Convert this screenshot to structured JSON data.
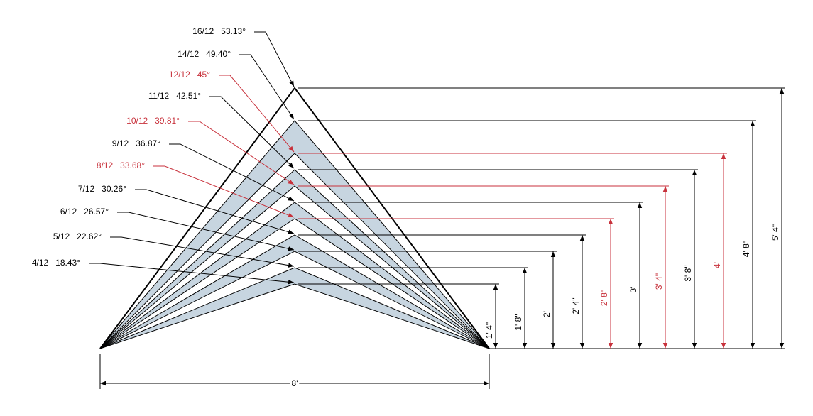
{
  "pitches": [
    {
      "pitch": "16/12",
      "angle": "53.13°",
      "height": "5' 4\"",
      "color": "#000000"
    },
    {
      "pitch": "14/12",
      "angle": "49.40°",
      "height": "4' 8\"",
      "color": "#000000"
    },
    {
      "pitch": "12/12",
      "angle": "45°",
      "height": "4'",
      "color": "#c8323c"
    },
    {
      "pitch": "11/12",
      "angle": "42.51°",
      "height": "3' 8\"",
      "color": "#000000"
    },
    {
      "pitch": "10/12",
      "angle": "39.81°",
      "height": "3' 4\"",
      "color": "#c8323c"
    },
    {
      "pitch": "9/12",
      "angle": "36.87°",
      "height": "3'",
      "color": "#000000"
    },
    {
      "pitch": "8/12",
      "angle": "33.68°",
      "height": "2' 8\"",
      "color": "#c8323c"
    },
    {
      "pitch": "7/12",
      "angle": "30.26°",
      "height": "2' 4\"",
      "color": "#000000"
    },
    {
      "pitch": "6/12",
      "angle": "26.57°",
      "height": "2'",
      "color": "#000000"
    },
    {
      "pitch": "5/12",
      "angle": "22.62°",
      "height": "1' 8\"",
      "color": "#000000"
    },
    {
      "pitch": "4/12",
      "angle": "18.43°",
      "height": "1' 4\"",
      "color": "#000000"
    }
  ],
  "span": "8'"
}
